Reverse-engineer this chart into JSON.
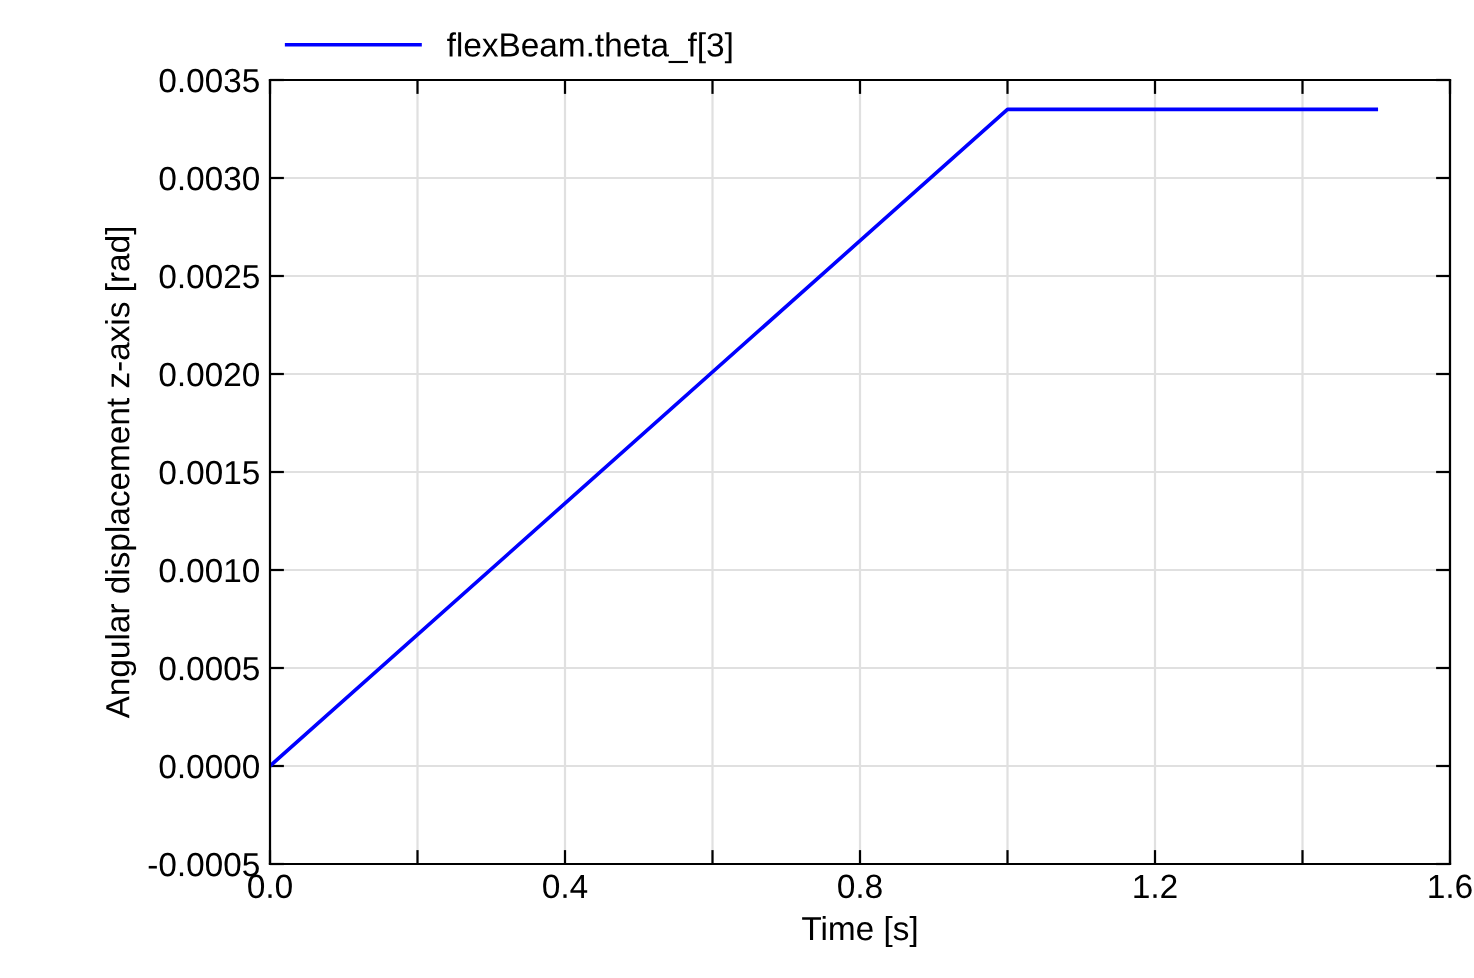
{
  "chart_data": {
    "type": "line",
    "xlabel": "Time [s]",
    "ylabel": "Angular displacement z-axis [rad]",
    "x": [
      0,
      1.0,
      1.5
    ],
    "series": [
      {
        "name": "flexBeam.theta_f[3]",
        "color": "#0000ff",
        "values": [
          0,
          0.00335,
          0.00335
        ]
      }
    ],
    "xlim": [
      0,
      1.6
    ],
    "xticks": [
      {
        "value": 0,
        "label": "0.0"
      },
      {
        "value": 0.2,
        "label": null
      },
      {
        "value": 0.4,
        "label": "0.4"
      },
      {
        "value": 0.6,
        "label": null
      },
      {
        "value": 0.8,
        "label": "0.8"
      },
      {
        "value": 1.0,
        "label": null
      },
      {
        "value": 1.2,
        "label": "1.2"
      },
      {
        "value": 1.4,
        "label": null
      },
      {
        "value": 1.6,
        "label": "1.6"
      }
    ],
    "ylim": [
      -0.0005,
      0.0035
    ],
    "yticks": [
      {
        "value": -0.0005,
        "label": "-0.0005"
      },
      {
        "value": 0,
        "label": "0.0000"
      },
      {
        "value": 0.0005,
        "label": "0.0005"
      },
      {
        "value": 0.001,
        "label": "0.0010"
      },
      {
        "value": 0.0015,
        "label": "0.0015"
      },
      {
        "value": 0.002,
        "label": "0.0020"
      },
      {
        "value": 0.0025,
        "label": "0.0025"
      },
      {
        "value": 0.003,
        "label": "0.0030"
      },
      {
        "value": 0.0035,
        "label": "0.0035"
      }
    ],
    "grid": true,
    "legend": "top left",
    "line_style": "solid",
    "marker": "none"
  }
}
